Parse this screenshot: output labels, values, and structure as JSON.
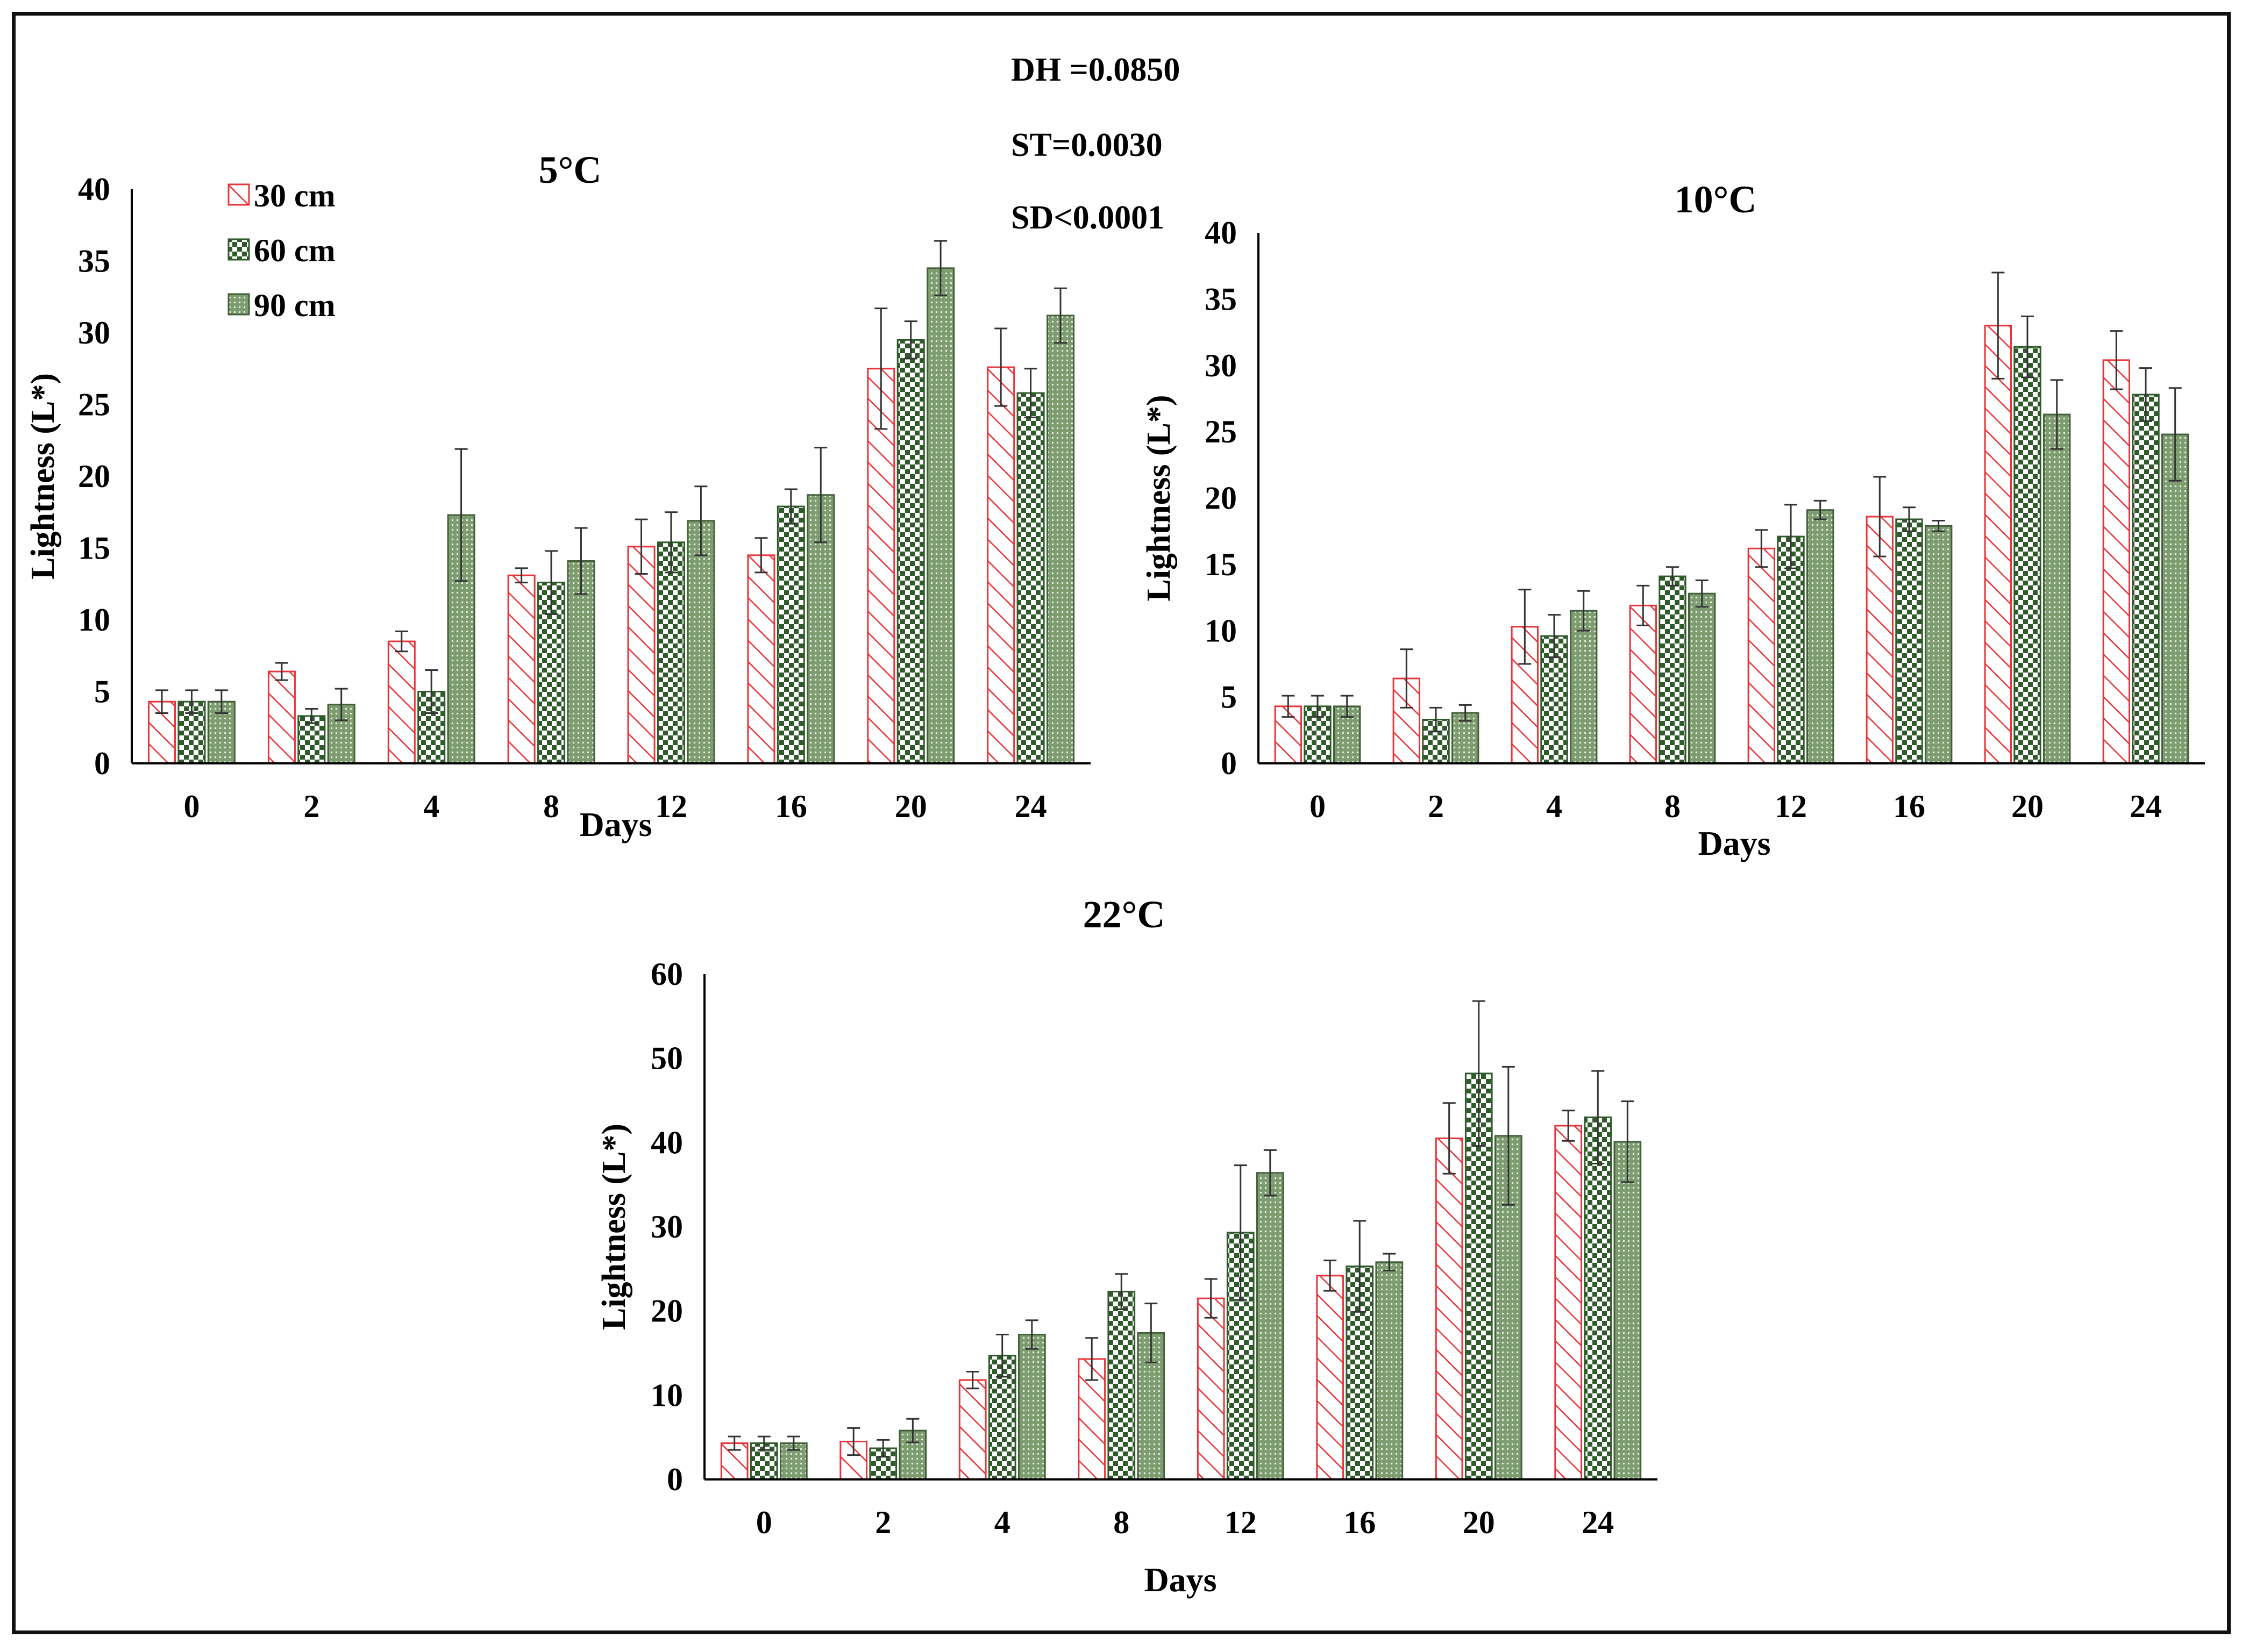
{
  "stats": {
    "dh": "DH =0.0850",
    "st": "ST=0.0030",
    "sd": "SD<0.0001"
  },
  "legend": {
    "items": [
      {
        "label": "30 cm",
        "pattern": "hatch"
      },
      {
        "label": "60 cm",
        "pattern": "checker"
      },
      {
        "label": "90 cm",
        "pattern": "dots"
      }
    ]
  },
  "colors": {
    "hatch_red": "#e8343a",
    "checker_green": "#2f5a2a",
    "dots_green": "#6e8f62",
    "axis": "#000000"
  },
  "chart_data": [
    {
      "type": "bar",
      "title": "5°C",
      "xlabel": "Days",
      "ylabel": "Lightness (L*)",
      "ylim": [
        0,
        40
      ],
      "yticks": [
        "0",
        "5",
        "10",
        "15",
        "20",
        "25",
        "30",
        "35",
        "40"
      ],
      "categories": [
        "0",
        "2",
        "4",
        "8",
        "12",
        "16",
        "20",
        "24"
      ],
      "series": [
        {
          "name": "30 cm",
          "values": [
            4.3,
            6.4,
            8.5,
            13.1,
            15.1,
            14.5,
            27.5,
            27.6
          ],
          "errors": [
            0.8,
            0.6,
            0.7,
            0.5,
            1.9,
            1.2,
            4.2,
            2.7
          ]
        },
        {
          "name": "60 cm",
          "values": [
            4.3,
            3.3,
            5.0,
            12.6,
            15.4,
            17.9,
            29.5,
            25.8
          ],
          "errors": [
            0.8,
            0.5,
            1.5,
            2.2,
            2.1,
            1.2,
            1.3,
            1.7
          ]
        },
        {
          "name": "90 cm",
          "values": [
            4.3,
            4.1,
            17.3,
            14.1,
            16.9,
            18.7,
            34.5,
            31.2
          ],
          "errors": [
            0.8,
            1.1,
            4.6,
            2.3,
            2.4,
            3.3,
            1.9,
            1.9
          ]
        }
      ]
    },
    {
      "type": "bar",
      "title": "10°C",
      "xlabel": "Days",
      "ylabel": "Lightness (L*)",
      "ylim": [
        0,
        40
      ],
      "yticks": [
        "0",
        "5",
        "10",
        "15",
        "20",
        "25",
        "30",
        "35",
        "40"
      ],
      "categories": [
        "0",
        "2",
        "4",
        "8",
        "12",
        "16",
        "20",
        "24"
      ],
      "series": [
        {
          "name": "30 cm",
          "values": [
            4.3,
            6.4,
            10.3,
            11.9,
            16.2,
            18.6,
            33.0,
            30.4
          ],
          "errors": [
            0.8,
            2.2,
            2.8,
            1.5,
            1.4,
            3.0,
            4.0,
            2.2
          ]
        },
        {
          "name": "60 cm",
          "values": [
            4.3,
            3.3,
            9.6,
            14.1,
            17.1,
            18.4,
            31.4,
            27.8
          ],
          "errors": [
            0.8,
            0.9,
            1.6,
            0.7,
            2.4,
            0.9,
            2.3,
            2.0
          ]
        },
        {
          "name": "90 cm",
          "values": [
            4.3,
            3.8,
            11.5,
            12.8,
            19.1,
            17.9,
            26.3,
            24.8
          ],
          "errors": [
            0.8,
            0.6,
            1.5,
            1.0,
            0.7,
            0.4,
            2.6,
            3.5
          ]
        }
      ]
    },
    {
      "type": "bar",
      "title": "22°C",
      "xlabel": "Days",
      "ylabel": "Lightness (L*)",
      "ylim": [
        0,
        60
      ],
      "yticks": [
        "0",
        "10",
        "20",
        "30",
        "40",
        "50",
        "60"
      ],
      "categories": [
        "0",
        "2",
        "4",
        "8",
        "12",
        "16",
        "20",
        "24"
      ],
      "series": [
        {
          "name": "30 cm",
          "values": [
            4.3,
            4.5,
            11.8,
            14.3,
            21.5,
            24.2,
            40.5,
            42.0
          ],
          "errors": [
            0.8,
            1.6,
            1.0,
            2.5,
            2.3,
            1.8,
            4.2,
            1.8
          ]
        },
        {
          "name": "60 cm",
          "values": [
            4.3,
            3.7,
            14.7,
            22.3,
            29.3,
            25.3,
            48.2,
            43.0
          ],
          "errors": [
            0.8,
            1.0,
            2.5,
            2.1,
            8.0,
            5.4,
            8.6,
            5.5
          ]
        },
        {
          "name": "90 cm",
          "values": [
            4.3,
            5.8,
            17.2,
            17.4,
            36.4,
            25.8,
            40.8,
            40.1
          ],
          "errors": [
            0.8,
            1.4,
            1.7,
            3.5,
            2.7,
            1.0,
            8.2,
            4.8
          ]
        }
      ]
    }
  ]
}
